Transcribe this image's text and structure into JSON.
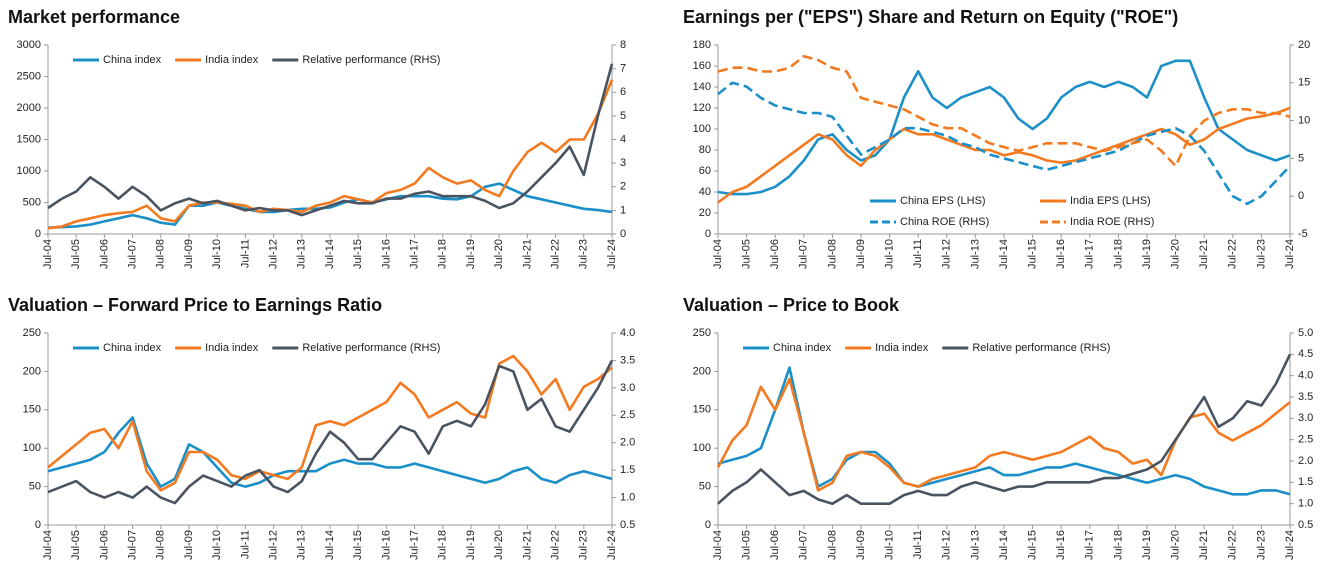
{
  "chart_data": [
    {
      "type": "line",
      "title": "Market performance",
      "legend": "top-left",
      "categories": [
        "Jul-04",
        null,
        "Jul-05",
        null,
        "Jul-06",
        null,
        "Jul-07",
        null,
        "Jul-08",
        null,
        "Jul-09",
        null,
        "Jul-10",
        null,
        "Jul-11",
        null,
        "Jul-12",
        null,
        "Jul-13",
        null,
        "Jul-14",
        null,
        "Jul-15",
        null,
        "Jul-16",
        null,
        "Jul-17",
        null,
        "Jul-18",
        null,
        "Jul-19",
        null,
        "Jul-20",
        null,
        "Jul-21",
        null,
        "Jul-22",
        null,
        "Jul-23",
        null,
        "Jul-24"
      ],
      "ylim": [
        0,
        3000
      ],
      "yticks": [
        0,
        500,
        1000,
        1500,
        2000,
        2500,
        3000
      ],
      "y2lim": [
        0,
        8
      ],
      "y2ticks": [
        0,
        1,
        2,
        3,
        4,
        5,
        6,
        7,
        8
      ],
      "series": [
        {
          "name": "China index",
          "color": "#1a8fc8",
          "values": [
            100,
            110,
            120,
            150,
            200,
            250,
            300,
            250,
            180,
            150,
            450,
            450,
            500,
            450,
            400,
            350,
            350,
            380,
            400,
            400,
            420,
            500,
            550,
            500,
            550,
            600,
            600,
            600,
            560,
            550,
            600,
            750,
            800,
            700,
            600,
            550,
            500,
            450,
            400,
            380,
            350
          ]
        },
        {
          "name": "India index",
          "color": "#f47a20",
          "values": [
            90,
            120,
            200,
            250,
            300,
            330,
            350,
            450,
            250,
            200,
            450,
            500,
            500,
            480,
            450,
            350,
            400,
            380,
            350,
            450,
            500,
            600,
            550,
            500,
            650,
            700,
            800,
            1050,
            900,
            800,
            850,
            700,
            600,
            1000,
            1300,
            1450,
            1300,
            1500,
            1500,
            1900,
            2450
          ]
        },
        {
          "name": "Relative performance (RHS)",
          "color": "#4a5461",
          "axis": "y2",
          "values": [
            1.1,
            1.5,
            1.8,
            2.4,
            2.0,
            1.5,
            2.0,
            1.6,
            1.0,
            1.3,
            1.5,
            1.3,
            1.4,
            1.2,
            1.0,
            1.1,
            1.0,
            1.0,
            0.8,
            1.0,
            1.2,
            1.4,
            1.3,
            1.3,
            1.5,
            1.5,
            1.7,
            1.8,
            1.6,
            1.6,
            1.6,
            1.4,
            1.1,
            1.3,
            1.8,
            2.4,
            3.0,
            3.7,
            2.5,
            5.0,
            7.2
          ]
        }
      ]
    },
    {
      "type": "line",
      "title": "Earnings per (\"EPS\") Share and Return on Equity (\"ROE\")",
      "legend": "bottom-right",
      "categories": [
        "Jul-04",
        null,
        "Jul-05",
        null,
        "Jul-06",
        null,
        "Jul-07",
        null,
        "Jul-08",
        null,
        "Jul-09",
        null,
        "Jul-10",
        null,
        "Jul-11",
        null,
        "Jul-12",
        null,
        "Jul-13",
        null,
        "Jul-14",
        null,
        "Jul-15",
        null,
        "Jul-16",
        null,
        "Jul-17",
        null,
        "Jul-18",
        null,
        "Jul-19",
        null,
        "Jul-20",
        null,
        "Jul-21",
        null,
        "Jul-22",
        null,
        "Jul-23",
        null,
        "Jul-24"
      ],
      "ylim": [
        0,
        180
      ],
      "yticks": [
        0,
        20,
        40,
        60,
        80,
        100,
        120,
        140,
        160,
        180
      ],
      "y2lim": [
        -5,
        20
      ],
      "y2ticks": [
        -5,
        0,
        5,
        10,
        15,
        20
      ],
      "series": [
        {
          "name": "China EPS (LHS)",
          "color": "#1a8fc8",
          "dashed": false,
          "values": [
            40,
            38,
            38,
            40,
            45,
            55,
            70,
            90,
            95,
            80,
            70,
            75,
            90,
            130,
            155,
            130,
            120,
            130,
            135,
            140,
            130,
            110,
            100,
            110,
            130,
            140,
            145,
            140,
            145,
            140,
            130,
            160,
            165,
            165,
            130,
            100,
            90,
            80,
            75,
            70,
            75
          ]
        },
        {
          "name": "India EPS (LHS)",
          "color": "#f47a20",
          "dashed": false,
          "values": [
            30,
            40,
            45,
            55,
            65,
            75,
            85,
            95,
            90,
            75,
            65,
            80,
            90,
            100,
            95,
            95,
            90,
            85,
            80,
            80,
            75,
            78,
            75,
            70,
            68,
            70,
            75,
            80,
            85,
            90,
            95,
            100,
            95,
            85,
            90,
            100,
            105,
            110,
            112,
            115,
            120
          ]
        },
        {
          "name": "China ROE (RHS)",
          "color": "#1a8fc8",
          "dashed": true,
          "axis": "y2",
          "values": [
            13.5,
            15,
            14.5,
            13,
            12,
            11.5,
            11,
            11,
            10.5,
            8,
            5.5,
            6.5,
            7.5,
            9,
            9,
            8.5,
            8,
            7,
            6.5,
            5.5,
            5,
            4.5,
            4,
            3.5,
            4,
            4.5,
            5,
            5.5,
            6,
            7,
            8,
            8.5,
            9,
            8,
            6,
            3,
            0,
            -1,
            0,
            2,
            4
          ]
        },
        {
          "name": "India ROE (RHS)",
          "color": "#f47a20",
          "dashed": true,
          "axis": "y2",
          "values": [
            16.5,
            17,
            17,
            16.5,
            16.5,
            17,
            18.5,
            18,
            17,
            16.5,
            13,
            12.5,
            12,
            11.5,
            10.5,
            9.5,
            9,
            9,
            8,
            7,
            6.5,
            6,
            6.5,
            7,
            7,
            7,
            6.5,
            6,
            6.5,
            7,
            7.5,
            6,
            4,
            8,
            10,
            11,
            11.5,
            11.5,
            11,
            11,
            10.5
          ]
        }
      ]
    },
    {
      "type": "line",
      "title": "Valuation – Forward Price to Earnings Ratio",
      "legend": "top-left",
      "categories": [
        "Jul-04",
        null,
        "Jul-05",
        null,
        "Jul-06",
        null,
        "Jul-07",
        null,
        "Jul-08",
        null,
        "Jul-09",
        null,
        "Jul-10",
        null,
        "Jul-11",
        null,
        "Jul-12",
        null,
        "Jul-13",
        null,
        "Jul-14",
        null,
        "Jul-15",
        null,
        "Jul-16",
        null,
        "Jul-17",
        null,
        "Jul-18",
        null,
        "Jul-19",
        null,
        "Jul-20",
        null,
        "Jul-21",
        null,
        "Jul-22",
        null,
        "Jul-23",
        null,
        "Jul-24"
      ],
      "ylim": [
        0,
        250
      ],
      "yticks": [
        0,
        50,
        100,
        150,
        200,
        250
      ],
      "y2lim": [
        0.5,
        4
      ],
      "y2ticks": [
        0.5,
        {
          "value": 1,
          "label": "1.0"
        },
        1.5,
        {
          "value": 2,
          "label": "2.0"
        },
        2.5,
        {
          "value": 3,
          "label": "3.0"
        },
        3.5,
        {
          "value": 4,
          "label": "4.0"
        }
      ],
      "series": [
        {
          "name": "China index",
          "color": "#1a8fc8",
          "values": [
            70,
            75,
            80,
            85,
            95,
            120,
            140,
            80,
            50,
            60,
            105,
            95,
            75,
            55,
            50,
            55,
            65,
            70,
            70,
            70,
            80,
            85,
            80,
            80,
            75,
            75,
            80,
            75,
            70,
            65,
            60,
            55,
            60,
            70,
            75,
            60,
            55,
            65,
            70,
            65,
            60
          ]
        },
        {
          "name": "India index",
          "color": "#f47a20",
          "values": [
            75,
            90,
            105,
            120,
            125,
            100,
            135,
            70,
            45,
            55,
            95,
            95,
            85,
            65,
            60,
            70,
            65,
            60,
            75,
            130,
            135,
            130,
            140,
            150,
            160,
            185,
            170,
            140,
            150,
            160,
            145,
            140,
            210,
            220,
            200,
            170,
            190,
            150,
            180,
            190,
            205
          ]
        },
        {
          "name": "Relative performance (RHS)",
          "color": "#4a5461",
          "axis": "y2",
          "values": [
            1.1,
            1.2,
            1.3,
            1.1,
            1.0,
            1.1,
            1.0,
            1.2,
            1.0,
            0.9,
            1.2,
            1.4,
            1.3,
            1.2,
            1.4,
            1.5,
            1.2,
            1.1,
            1.3,
            1.8,
            2.2,
            2.0,
            1.7,
            1.7,
            2.0,
            2.3,
            2.2,
            1.8,
            2.3,
            2.4,
            2.3,
            2.7,
            3.4,
            3.3,
            2.6,
            2.8,
            2.3,
            2.2,
            2.6,
            3.0,
            3.5
          ]
        }
      ]
    },
    {
      "type": "line",
      "title": "Valuation – Price to Book",
      "legend": "top-left",
      "categories": [
        "Jul-04",
        null,
        "Jul-05",
        null,
        "Jul-06",
        null,
        "Jul-07",
        null,
        "Jul-08",
        null,
        "Jul-09",
        null,
        "Jul-10",
        null,
        "Jul-11",
        null,
        "Jul-12",
        null,
        "Jul-13",
        null,
        "Jul-14",
        null,
        "Jul-15",
        null,
        "Jul-16",
        null,
        "Jul-17",
        null,
        "Jul-18",
        null,
        "Jul-19",
        null,
        "Jul-20",
        null,
        "Jul-21",
        null,
        "Jul-22",
        null,
        "Jul-23",
        null,
        "Jul-24"
      ],
      "ylim": [
        0,
        250
      ],
      "yticks": [
        0,
        50,
        100,
        150,
        200,
        250
      ],
      "y2lim": [
        0.5,
        5
      ],
      "y2ticks": [
        0.5,
        {
          "value": 1,
          "label": "1.0"
        },
        1.5,
        {
          "value": 2,
          "label": "2.0"
        },
        2.5,
        {
          "value": 3,
          "label": "3.0"
        },
        3.5,
        {
          "value": 4,
          "label": "4.0"
        },
        4.5,
        {
          "value": 5,
          "label": "5.0"
        }
      ],
      "series": [
        {
          "name": "China index",
          "color": "#1a8fc8",
          "values": [
            80,
            85,
            90,
            100,
            150,
            205,
            120,
            50,
            60,
            85,
            95,
            95,
            80,
            55,
            50,
            55,
            60,
            65,
            70,
            75,
            65,
            65,
            70,
            75,
            75,
            80,
            75,
            70,
            65,
            60,
            55,
            60,
            65,
            60,
            50,
            45,
            40,
            40,
            45,
            45,
            40
          ]
        },
        {
          "name": "India index",
          "color": "#f47a20",
          "values": [
            75,
            110,
            130,
            180,
            150,
            190,
            120,
            45,
            55,
            90,
            95,
            90,
            75,
            55,
            50,
            60,
            65,
            70,
            75,
            90,
            95,
            90,
            85,
            90,
            95,
            105,
            115,
            100,
            95,
            80,
            85,
            65,
            110,
            140,
            145,
            120,
            110,
            120,
            130,
            145,
            160
          ]
        },
        {
          "name": "Relative performance (RHS)",
          "color": "#4a5461",
          "axis": "y2",
          "values": [
            1.0,
            1.3,
            1.5,
            1.8,
            1.5,
            1.2,
            1.3,
            1.1,
            1.0,
            1.2,
            1.0,
            1.0,
            1.0,
            1.2,
            1.3,
            1.2,
            1.2,
            1.4,
            1.5,
            1.4,
            1.3,
            1.4,
            1.4,
            1.5,
            1.5,
            1.5,
            1.5,
            1.6,
            1.6,
            1.7,
            1.8,
            2.0,
            2.5,
            3.0,
            3.5,
            2.8,
            3.0,
            3.4,
            3.3,
            3.8,
            4.5
          ]
        }
      ]
    }
  ]
}
